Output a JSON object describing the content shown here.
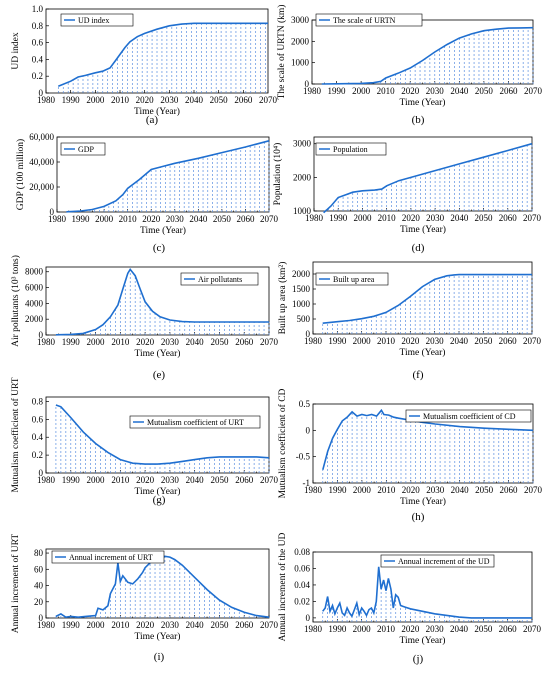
{
  "chart_data": [
    {
      "panel": "(a)",
      "type": "line",
      "ylabel": "UD index",
      "xlabel": "Time (Year)",
      "legend": "UD index",
      "xlim": [
        1980,
        2070
      ],
      "ylim": [
        0,
        1.0
      ],
      "yticks": [
        "0",
        "0.2",
        "0.4",
        "0.6",
        "0.8",
        "1.0"
      ],
      "series": [
        {
          "name": "UD index",
          "x": [
            1985,
            1990,
            1993,
            1996,
            2000,
            2003,
            2006,
            2008,
            2010,
            2012,
            2014,
            2017,
            2020,
            2025,
            2030,
            2035,
            2040,
            2045,
            2050,
            2060,
            2070
          ],
          "y": [
            0.08,
            0.14,
            0.19,
            0.21,
            0.24,
            0.26,
            0.3,
            0.38,
            0.46,
            0.54,
            0.61,
            0.67,
            0.71,
            0.76,
            0.8,
            0.82,
            0.83,
            0.83,
            0.83,
            0.83,
            0.83
          ]
        }
      ]
    },
    {
      "panel": "(b)",
      "type": "line",
      "ylabel": "The scale of URTN (km)",
      "xlabel": "Time (Year)",
      "legend": "The scale of URTN",
      "xlim": [
        1980,
        2070
      ],
      "ylim": [
        0,
        3000
      ],
      "yticks": [
        "0",
        "1000",
        "2000",
        "3000"
      ],
      "series": [
        {
          "name": "The scale of URTN",
          "x": [
            1984,
            1990,
            2000,
            2005,
            2008,
            2010,
            2015,
            2020,
            2025,
            2030,
            2035,
            2040,
            2045,
            2050,
            2055,
            2060,
            2065,
            2070
          ],
          "y": [
            0,
            10,
            30,
            60,
            120,
            280,
            500,
            750,
            1100,
            1500,
            1850,
            2150,
            2350,
            2500,
            2570,
            2620,
            2630,
            2640
          ]
        }
      ]
    },
    {
      "panel": "(c)",
      "type": "line",
      "ylabel": "GDP (100 million)",
      "xlabel": "Time (Year)",
      "legend": "GDP",
      "xlim": [
        1980,
        2070
      ],
      "ylim": [
        0,
        60000
      ],
      "yticks": [
        "0",
        "20,000",
        "40,000",
        "60,000"
      ],
      "series": [
        {
          "name": "GDP",
          "x": [
            1984,
            1990,
            1995,
            2000,
            2005,
            2008,
            2010,
            2015,
            2020,
            2025,
            2030,
            2040,
            2050,
            2060,
            2070
          ],
          "y": [
            200,
            800,
            2000,
            4500,
            9000,
            14000,
            19000,
            26000,
            34000,
            36500,
            39000,
            43000,
            47500,
            52000,
            57000
          ]
        }
      ]
    },
    {
      "panel": "(d)",
      "type": "line",
      "ylabel": "Population (10⁴)",
      "xlabel": "Time (Year)",
      "legend": "Population",
      "xlim": [
        1980,
        2070
      ],
      "ylim": [
        1000,
        3200
      ],
      "yticks": [
        "1000",
        "2000",
        "3000"
      ],
      "series": [
        {
          "name": "Population",
          "x": [
            1984,
            1987,
            1990,
            1993,
            1996,
            2000,
            2005,
            2008,
            2010,
            2015,
            2020,
            2030,
            2040,
            2050,
            2060,
            2070
          ],
          "y": [
            950,
            1150,
            1400,
            1480,
            1560,
            1600,
            1620,
            1650,
            1750,
            1900,
            2000,
            2200,
            2400,
            2600,
            2800,
            3000
          ]
        }
      ]
    },
    {
      "panel": "(e)",
      "type": "line",
      "ylabel": "Air pollutants (10³ tons)",
      "xlabel": "Time (Year)",
      "legend": "Air pollutants",
      "xlim": [
        1980,
        2070
      ],
      "ylim": [
        0,
        8600
      ],
      "yticks": [
        "0",
        "2000",
        "4000",
        "6000",
        "8000"
      ],
      "series": [
        {
          "name": "Air pollutants",
          "x": [
            1984,
            1990,
            1995,
            2000,
            2003,
            2006,
            2009,
            2011,
            2013,
            2014,
            2016,
            2018,
            2020,
            2023,
            2026,
            2030,
            2035,
            2040,
            2050,
            2060,
            2070
          ],
          "y": [
            30,
            80,
            200,
            700,
            1300,
            2300,
            3800,
            5800,
            7800,
            8300,
            7500,
            5800,
            4200,
            3000,
            2300,
            1900,
            1700,
            1650,
            1650,
            1650,
            1650
          ]
        }
      ]
    },
    {
      "panel": "(f)",
      "type": "line",
      "ylabel": "Built up area (km²)",
      "xlabel": "Time (Year)",
      "legend": "Built up area",
      "xlim": [
        1980,
        2070
      ],
      "ylim": [
        0,
        2400
      ],
      "yticks": [
        "0",
        "500",
        "1000",
        "1500",
        "2000"
      ],
      "series": [
        {
          "name": "Built up area",
          "x": [
            1984,
            1990,
            1995,
            2000,
            2005,
            2010,
            2015,
            2020,
            2025,
            2030,
            2035,
            2038,
            2040,
            2045,
            2050,
            2060,
            2070
          ],
          "y": [
            360,
            410,
            450,
            510,
            590,
            720,
            950,
            1250,
            1580,
            1820,
            1940,
            1970,
            1980,
            1980,
            1980,
            1980,
            1980
          ]
        }
      ]
    },
    {
      "panel": "(g)",
      "type": "line",
      "ylabel": "Mutualism coefficient of URT",
      "xlabel": "Time (Year)",
      "legend": "Mutualism coefficient of URT",
      "xlim": [
        1980,
        2070
      ],
      "ylim": [
        0,
        0.85
      ],
      "yticks": [
        "0",
        "0.2",
        "0.4",
        "0.6",
        "0.8"
      ],
      "series": [
        {
          "name": "Mutualism coefficient of URT",
          "x": [
            1984,
            1986,
            1990,
            1995,
            2000,
            2005,
            2010,
            2015,
            2020,
            2025,
            2030,
            2035,
            2040,
            2045,
            2050,
            2055,
            2060,
            2065,
            2070
          ],
          "y": [
            0.76,
            0.74,
            0.62,
            0.46,
            0.33,
            0.23,
            0.15,
            0.11,
            0.1,
            0.1,
            0.11,
            0.13,
            0.15,
            0.17,
            0.18,
            0.18,
            0.18,
            0.18,
            0.17
          ]
        }
      ]
    },
    {
      "panel": "(h)",
      "type": "line",
      "ylabel": "Mutualism coefficient of CD",
      "xlabel": "Time (Year)",
      "legend": "Mutualism coefficient of CD",
      "xlim": [
        1980,
        2070
      ],
      "ylim": [
        -1,
        0.5
      ],
      "yticks": [
        "-1",
        "-0.5",
        "0",
        "0.5"
      ],
      "series": [
        {
          "name": "Mutualism coefficient of CD",
          "x": [
            1984,
            1986,
            1988,
            1990,
            1992,
            1994,
            1996,
            1998,
            2000,
            2002,
            2004,
            2006,
            2008,
            2009,
            2011,
            2013,
            2015,
            2020,
            2025,
            2030,
            2040,
            2050,
            2060,
            2070
          ],
          "y": [
            -0.75,
            -0.4,
            -0.15,
            0.02,
            0.18,
            0.25,
            0.35,
            0.27,
            0.3,
            0.28,
            0.3,
            0.27,
            0.38,
            0.3,
            0.29,
            0.25,
            0.23,
            0.19,
            0.15,
            0.12,
            0.07,
            0.04,
            0.02,
            0.0
          ]
        }
      ]
    },
    {
      "panel": "(i)",
      "type": "line",
      "ylabel": "Annual increment of URT",
      "xlabel": "Time (Year)",
      "legend": "Annual increment of URT",
      "xlim": [
        1980,
        2070
      ],
      "ylim": [
        0,
        85
      ],
      "yticks": [
        "0",
        "20",
        "40",
        "60",
        "80"
      ],
      "series": [
        {
          "name": "Annual increment of URT",
          "x": [
            1984,
            1986,
            1988,
            1990,
            1993,
            1996,
            2000,
            2001,
            2003,
            2005,
            2006,
            2008,
            2009,
            2010,
            2011,
            2012,
            2013,
            2015,
            2017,
            2019,
            2020,
            2022,
            2025,
            2028,
            2030,
            2032,
            2035,
            2040,
            2045,
            2050,
            2055,
            2060,
            2065,
            2070
          ],
          "y": [
            2,
            5,
            1,
            2,
            1,
            2,
            3,
            12,
            10,
            15,
            30,
            42,
            68,
            45,
            52,
            48,
            44,
            42,
            48,
            56,
            62,
            68,
            74,
            76,
            75,
            72,
            65,
            50,
            35,
            22,
            13,
            7,
            3,
            1
          ]
        }
      ]
    },
    {
      "panel": "(j)",
      "type": "line",
      "ylabel": "Annual increment of the UD",
      "xlabel": "Time (Year)",
      "legend": "Annual increment of the UD",
      "xlim": [
        1980,
        2070
      ],
      "ylim": [
        -0.005,
        0.08
      ],
      "yticks": [
        "0",
        "0.02",
        "0.04",
        "0.06",
        "0.08"
      ],
      "series": [
        {
          "name": "Annual increment of the UD",
          "x": [
            1984,
            1985,
            1986,
            1987,
            1988,
            1989,
            1990,
            1991,
            1992,
            1993,
            1994,
            1995,
            1996,
            1997,
            1998,
            1999,
            2000,
            2001,
            2002,
            2003,
            2004,
            2005,
            2006,
            2007,
            2008,
            2009,
            2010,
            2011,
            2012,
            2013,
            2014,
            2015,
            2016,
            2017,
            2018,
            2020,
            2025,
            2030,
            2035,
            2040,
            2045,
            2050,
            2060,
            2070
          ],
          "y": [
            0.008,
            0.012,
            0.026,
            0.008,
            0.015,
            0.005,
            0.012,
            0.018,
            0.006,
            0.003,
            0.012,
            0.006,
            0.002,
            0.01,
            0.018,
            0.004,
            0.012,
            0.008,
            0.003,
            0.01,
            0.012,
            0.006,
            0.02,
            0.062,
            0.035,
            0.046,
            0.033,
            0.048,
            0.035,
            0.012,
            0.028,
            0.025,
            0.015,
            0.014,
            0.013,
            0.011,
            0.008,
            0.005,
            0.003,
            0.001,
            0.0,
            0.0,
            0.0,
            0.0
          ]
        }
      ]
    }
  ],
  "panel_labels": [
    "(a)",
    "(b)",
    "(c)",
    "(d)",
    "(e)",
    "(f)",
    "(g)",
    "(h)",
    "(i)",
    "(j)"
  ],
  "xticks": [
    "1980",
    "1990",
    "2000",
    "2010",
    "2020",
    "2030",
    "2040",
    "2050",
    "2060",
    "2070"
  ],
  "colors": {
    "line": "#1f6fd0",
    "drop": "#5b8fe0",
    "axis": "#000000"
  }
}
